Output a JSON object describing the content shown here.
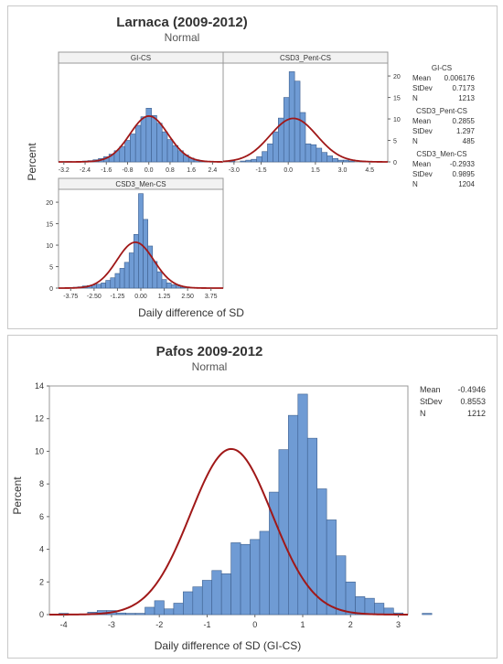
{
  "chart_data": [
    {
      "type": "bar",
      "title": "Larnaca (2009-2012)",
      "subtitle": "Normal",
      "xlabel": "Daily difference of SD",
      "ylabel": "Percent",
      "panels": [
        {
          "name": "GI-CS",
          "x_ticks": [
            "-3.2",
            "-2.4",
            "-1.6",
            "-0.8",
            "0.0",
            "0.8",
            "1.6",
            "2.4"
          ],
          "x_tick_values": [
            -3.2,
            -2.4,
            -1.6,
            -0.8,
            0.0,
            0.8,
            1.6,
            2.4
          ],
          "xlim": [
            -3.4,
            2.8
          ],
          "ylim": [
            0,
            23
          ],
          "bin_start": -3.1,
          "bin_width": 0.2,
          "values": [
            0.1,
            0,
            0.1,
            0.2,
            0.3,
            0.5,
            0.8,
            1.2,
            1.8,
            2.6,
            3.6,
            5.0,
            6.5,
            8.5,
            10.5,
            12.5,
            10.8,
            9.0,
            7.0,
            5.2,
            3.8,
            2.6,
            1.6,
            0.9,
            0.5,
            0.2,
            0.1
          ],
          "mean": 0.006176,
          "stdev": 0.7173
        },
        {
          "name": "CSD3_Pent-CS",
          "x_ticks": [
            "-3.0",
            "-1.5",
            "0.0",
            "1.5",
            "3.0",
            "4.5"
          ],
          "x_tick_values": [
            -3.0,
            -1.5,
            0.0,
            1.5,
            3.0,
            4.5
          ],
          "xlim": [
            -3.6,
            5.5
          ],
          "ylim": [
            0,
            23
          ],
          "bin_start": -3.25,
          "bin_width": 0.3,
          "values": [
            0.2,
            0,
            0.2,
            0.4,
            0.6,
            1.2,
            2.4,
            4.2,
            7.0,
            10.2,
            15.0,
            21.0,
            18.8,
            11.5,
            4.2,
            4.0,
            3.2,
            2.2,
            1.4,
            0.8,
            0.4,
            0.4,
            0.2,
            0,
            0.2
          ],
          "mean": 0.2855,
          "stdev": 1.297
        },
        {
          "name": "CSD3_Men-CS",
          "x_ticks": [
            "-3.75",
            "-2.50",
            "-1.25",
            "0.00",
            "1.25",
            "2.50",
            "3.75"
          ],
          "x_tick_values": [
            -3.75,
            -2.5,
            -1.25,
            0.0,
            1.25,
            2.5,
            3.75
          ],
          "xlim": [
            -4.4,
            4.4
          ],
          "ylim": [
            0,
            23
          ],
          "bin_start": -3.875,
          "bin_width": 0.25,
          "values": [
            0.1,
            0.2,
            0.3,
            0.5,
            0.6,
            0.7,
            0.9,
            1.2,
            1.8,
            2.4,
            3.4,
            4.6,
            6.0,
            8.2,
            12.5,
            22.0,
            16.0,
            9.8,
            6.2,
            3.8,
            2.0,
            1.2,
            0.8,
            0.5,
            0.2
          ],
          "mean": -0.2933,
          "stdev": 0.9895
        }
      ],
      "y_ticks": [
        "0",
        "5",
        "10",
        "15",
        "20"
      ],
      "y_tick_values": [
        0,
        5,
        10,
        15,
        20
      ],
      "legend": [
        {
          "name": "GI-CS",
          "rows": [
            {
              "k": "Mean",
              "v": "0.006176"
            },
            {
              "k": "StDev",
              "v": "0.7173"
            },
            {
              "k": "N",
              "v": "1213"
            }
          ]
        },
        {
          "name": "CSD3_Pent-CS",
          "rows": [
            {
              "k": "Mean",
              "v": "0.2855"
            },
            {
              "k": "StDev",
              "v": "1.297"
            },
            {
              "k": "N",
              "v": "485"
            }
          ]
        },
        {
          "name": "CSD3_Men-CS",
          "rows": [
            {
              "k": "Mean",
              "v": "-0.2933"
            },
            {
              "k": "StDev",
              "v": "0.9895"
            },
            {
              "k": "N",
              "v": "1204"
            }
          ]
        }
      ],
      "bar_color": "#6f9bd4",
      "curve_color": "#a01818"
    },
    {
      "type": "bar",
      "title": "Pafos 2009-2012",
      "subtitle": "Normal",
      "xlabel": "Daily difference of SD (GI-CS)",
      "ylabel": "Percent",
      "x_ticks": [
        "-4",
        "-3",
        "-2",
        "-1",
        "0",
        "1",
        "2",
        "3"
      ],
      "x_tick_values": [
        -4,
        -3,
        -2,
        -1,
        0,
        1,
        2,
        3
      ],
      "xlim": [
        -4.3,
        3.2
      ],
      "y_ticks": [
        "0",
        "2",
        "4",
        "6",
        "8",
        "10",
        "12",
        "14"
      ],
      "y_tick_values": [
        0,
        2,
        4,
        6,
        8,
        10,
        12,
        14
      ],
      "ylim": [
        0,
        14
      ],
      "bin_start": -4.1,
      "bin_width": 0.2,
      "values": [
        0.08,
        0,
        0,
        0.15,
        0.25,
        0.25,
        0.1,
        0.08,
        0.08,
        0.45,
        0.85,
        0.35,
        0.7,
        1.4,
        1.7,
        2.1,
        2.7,
        2.5,
        4.4,
        4.3,
        4.6,
        5.1,
        7.5,
        10.1,
        12.2,
        13.5,
        10.8,
        7.7,
        5.8,
        3.6,
        2.0,
        1.1,
        1.0,
        0.7,
        0.4,
        0.1,
        0,
        0,
        0.08
      ],
      "mean": -0.4946,
      "stdev": 0.8553,
      "legend": [
        {
          "k": "Mean",
          "v": "-0.4946"
        },
        {
          "k": "StDev",
          "v": "0.8553"
        },
        {
          "k": "N",
          "v": "1212"
        }
      ],
      "bar_color": "#6f9bd4",
      "curve_color": "#a01818"
    }
  ]
}
